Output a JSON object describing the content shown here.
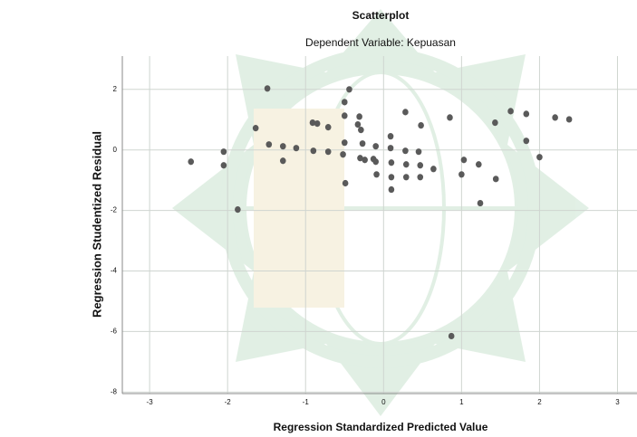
{
  "chart_data": {
    "type": "scatter",
    "title": "Scatterplot",
    "subtitle": "Dependent Variable: Kepuasan",
    "x_label": "Regression Standardized Predicted Value",
    "y_label": "Regression Studentized Residual",
    "x": [
      -2.47,
      -2.05,
      -2.05,
      -1.87,
      -1.64,
      -1.49,
      -1.47,
      -1.29,
      -1.29,
      -1.12,
      -0.91,
      -0.85,
      -0.9,
      -0.71,
      -0.71,
      -0.5,
      -0.5,
      -0.5,
      -0.44,
      -0.49,
      -0.52,
      -0.33,
      -0.31,
      -0.29,
      -0.27,
      -0.3,
      -0.24,
      -0.13,
      -0.1,
      -0.1,
      -0.09,
      0.09,
      0.09,
      0.1,
      0.1,
      0.1,
      0.28,
      0.28,
      0.29,
      0.29,
      0.45,
      0.48,
      0.47,
      0.47,
      0.64,
      0.85,
      0.87,
      1.0,
      1.03,
      1.22,
      1.24,
      1.43,
      1.44,
      1.63,
      1.83,
      1.83,
      2.0,
      2.2,
      2.38
    ],
    "values": [
      -0.39,
      -0.06,
      -0.51,
      -1.97,
      0.72,
      2.03,
      0.18,
      0.12,
      -0.36,
      0.06,
      0.9,
      0.87,
      -0.03,
      -0.06,
      0.75,
      1.58,
      1.13,
      0.24,
      2.0,
      -1.1,
      -0.15,
      0.84,
      1.1,
      0.66,
      0.21,
      -0.27,
      -0.33,
      -0.3,
      0.12,
      -0.39,
      -0.81,
      0.45,
      0.06,
      -0.42,
      -0.9,
      -1.31,
      1.25,
      -0.03,
      -0.48,
      -0.9,
      -0.06,
      0.81,
      -0.51,
      -0.9,
      -0.63,
      1.07,
      -6.15,
      -0.81,
      -0.33,
      -0.48,
      -1.76,
      0.9,
      -0.96,
      1.28,
      1.19,
      0.3,
      -0.24,
      1.07,
      1.01
    ],
    "color": "#5a5a5a",
    "xlim": [
      -3.35,
      3.25
    ],
    "xticks": [
      -3,
      -2,
      -1,
      0,
      1,
      2,
      3
    ],
    "ylim": [
      -8.05,
      3.1
    ],
    "yticks": [
      -8,
      -6,
      -4,
      -2,
      0,
      2
    ],
    "grid": true
  }
}
